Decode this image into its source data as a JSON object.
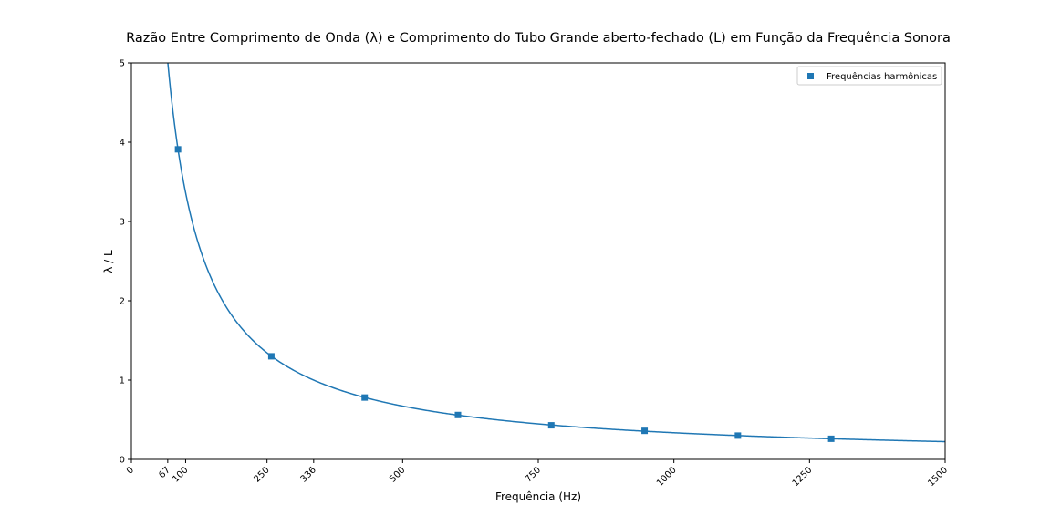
{
  "chart_data": {
    "type": "line",
    "title": "Razão Entre Comprimento de Onda (λ) e Comprimento do Tubo Grande aberto-fechado (L) em Função da Frequência Sonora",
    "xlabel": "Frequência (Hz)",
    "ylabel": "λ / L",
    "xlim": [
      0,
      1500
    ],
    "ylim": [
      0,
      5
    ],
    "x_ticks": [
      0,
      67,
      100,
      250,
      336,
      500,
      750,
      1000,
      1250,
      1500
    ],
    "x_tick_labels": [
      "0",
      "67",
      "100",
      "250",
      "336",
      "500",
      "750",
      "1000",
      "1250",
      "1500"
    ],
    "y_ticks": [
      0,
      1,
      2,
      3,
      4,
      5
    ],
    "y_tick_labels": [
      "0",
      "1",
      "2",
      "3",
      "4",
      "5"
    ],
    "grid": false,
    "legend_position": "top-right",
    "curve": {
      "description": "λ/L = 336 / f",
      "constant": 336,
      "x_start": 65,
      "x_end": 1500,
      "color": "#1f77b4"
    },
    "series": [
      {
        "name": "Frequências harmônicas",
        "marker": "square",
        "color": "#1f77b4",
        "x": [
          86,
          258,
          430,
          602,
          774,
          946,
          1118,
          1290
        ],
        "y": [
          3.91,
          1.3,
          0.78,
          0.56,
          0.43,
          0.36,
          0.3,
          0.26
        ]
      }
    ]
  }
}
